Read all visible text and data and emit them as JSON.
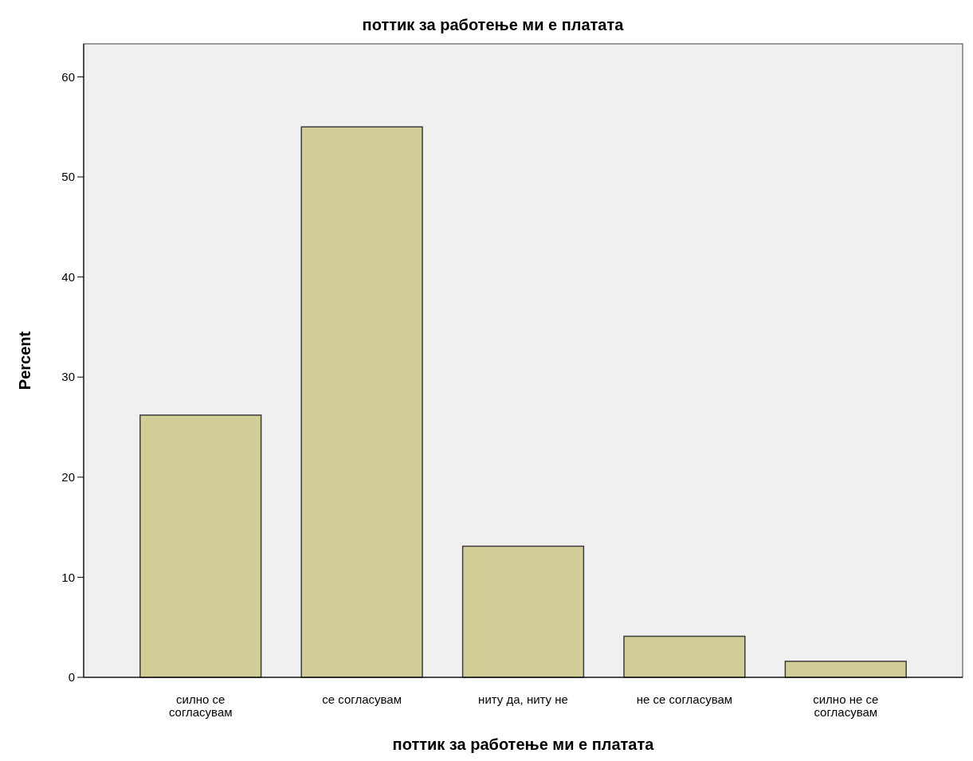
{
  "chart_data": {
    "type": "bar",
    "title": "поттик за работење ми е платата",
    "xlabel": "поттик за работење ми е платата",
    "ylabel": "Percent",
    "categories": [
      "силно се согласувам",
      "се согласувам",
      "ниту да, ниту не",
      "не се согласувам",
      "силно не се согласувам"
    ],
    "values": [
      26.2,
      55.0,
      13.1,
      4.1,
      1.6
    ],
    "color": "#d3ce97",
    "ylim": [
      0,
      63.3
    ],
    "yticks": [
      0,
      10,
      20,
      30,
      40,
      50,
      60
    ],
    "grid": false
  }
}
